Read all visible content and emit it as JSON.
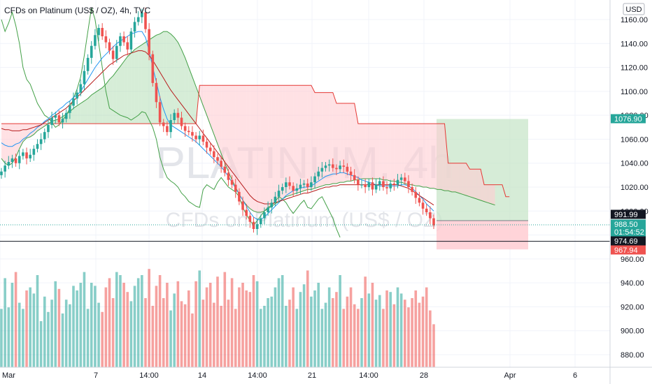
{
  "title": "CFDs on Platinum (US$ / OZ), 4h, TVC",
  "watermark": {
    "symbol": "PLATINUM, 4h",
    "description": "CFDs on Platinum (US$ / OZ)"
  },
  "currency": "USD",
  "colors": {
    "up": "#26a69a",
    "down": "#ef5350",
    "tenkan": "#2196f3",
    "kijun": "#b71c1c",
    "span_a": "#43a047",
    "span_b": "#e53935",
    "chikou": "#43a047",
    "long_target": "#c8e6c9",
    "long_stop": "#ffcdd2"
  },
  "axis": {
    "y_ticks": [
      "1160.00",
      "1140.00",
      "1120.00",
      "1100.00",
      "1080.00",
      "1060.00",
      "1040.00",
      "1020.00",
      "1000.00",
      "980.00",
      "960.00",
      "940.00",
      "920.00",
      "900.00",
      "880.00"
    ],
    "x_ticks": [
      "Mar",
      "7",
      "14:00",
      "14",
      "14:00",
      "21",
      "14:00",
      "28",
      "Apr",
      "6"
    ]
  },
  "price_tags": [
    {
      "label": "1076.90",
      "kind": "target",
      "value": 1076.9
    },
    {
      "label": "991.99",
      "kind": "entry",
      "value": 991.99
    },
    {
      "label": "988.50",
      "kind": "last",
      "value": 988.5
    },
    {
      "label": "01:54:52",
      "kind": "countdown",
      "value": 985.5
    },
    {
      "label": "974.69",
      "kind": "horizontal-line",
      "value": 974.69
    },
    {
      "label": "967.94",
      "kind": "stop",
      "value": 967.94
    }
  ],
  "chart_data": {
    "type": "candlestick",
    "title": "CFDs on Platinum (US$ / OZ), 4h, TVC",
    "ylabel": "USD",
    "ylim": [
      868,
      1172
    ],
    "x_range_labels": [
      "Mar",
      "Apr 6"
    ],
    "series": [
      {
        "name": "close",
        "values": [
          1033,
          1038,
          1041,
          1044,
          1040,
          1046,
          1049,
          1044,
          1047,
          1052,
          1056,
          1060,
          1066,
          1072,
          1078,
          1080,
          1074,
          1077,
          1082,
          1088,
          1094,
          1099,
          1106,
          1117,
          1128,
          1138,
          1147,
          1153,
          1146,
          1141,
          1134,
          1127,
          1138,
          1146,
          1141,
          1135,
          1150,
          1158,
          1162,
          1166,
          1152,
          1131,
          1107,
          1091,
          1074,
          1071,
          1066,
          1076,
          1082,
          1078,
          1071,
          1067,
          1066,
          1063,
          1060,
          1063,
          1058,
          1053,
          1050,
          1045,
          1042,
          1037,
          1032,
          1026,
          1022,
          1016,
          1008,
          1001,
          996,
          991,
          985,
          989,
          994,
          999,
          1003,
          1007,
          1012,
          1017,
          1020,
          1024,
          1021,
          1017,
          1019,
          1022,
          1023,
          1020,
          1024,
          1029,
          1033,
          1036,
          1038,
          1039,
          1036,
          1035,
          1038,
          1037,
          1033,
          1030,
          1026,
          1022,
          1022,
          1020,
          1024,
          1018,
          1022,
          1025,
          1020,
          1019,
          1023,
          1022,
          1026,
          1028,
          1025,
          1020,
          1016,
          1011,
          1007,
          1002,
          999,
          994,
          988
        ]
      },
      {
        "name": "volume",
        "values": [
          38,
          58,
          39,
          55,
          62,
          42,
          38,
          50,
          52,
          48,
          60,
          30,
          46,
          36,
          44,
          56,
          51,
          35,
          44,
          41,
          53,
          50,
          55,
          62,
          38,
          55,
          53,
          42,
          36,
          52,
          58,
          45,
          62,
          60,
          55,
          49,
          43,
          53,
          58,
          60,
          45,
          64,
          40,
          53,
          60,
          45,
          55,
          37,
          48,
          56,
          43,
          41,
          50,
          35,
          56,
          63,
          44,
          52,
          55,
          42,
          59,
          40,
          62,
          44,
          58,
          38,
          52,
          55,
          50,
          49,
          60,
          56,
          38,
          40,
          45,
          46,
          52,
          58,
          60,
          40,
          44,
          52,
          38,
          49,
          54,
          63,
          46,
          50,
          55,
          38,
          42,
          52,
          45,
          49,
          60,
          38,
          46,
          52,
          41,
          38,
          45,
          59,
          48,
          55,
          44,
          47,
          38,
          50,
          49,
          41,
          52,
          48,
          44,
          39,
          45,
          50,
          42,
          46,
          52,
          37,
          28
        ]
      },
      {
        "name": "tenkan",
        "values": [
          1057,
          1055,
          1054,
          1054,
          1056,
          1057,
          1060,
          1062,
          1065,
          1067,
          1070,
          1072,
          1075,
          1077,
          1080,
          1082,
          1085,
          1087,
          1090,
          1092,
          1095,
          1097,
          1100,
          1105,
          1110,
          1115,
          1120,
          1124,
          1128,
          1131,
          1134,
          1137,
          1140,
          1142,
          1144,
          1146,
          1148,
          1149,
          1150,
          1150,
          1145,
          1134,
          1120,
          1108,
          1095,
          1085,
          1077,
          1072,
          1070,
          1068,
          1066,
          1064,
          1062,
          1060,
          1058,
          1055,
          1052,
          1049,
          1046,
          1043,
          1040,
          1037,
          1033,
          1029,
          1024,
          1019,
          1014,
          1009,
          1004,
          999,
          995,
          993,
          993,
          995,
          998,
          1001,
          1004,
          1007,
          1010,
          1013,
          1015,
          1017,
          1018,
          1019,
          1020,
          1020,
          1021,
          1023,
          1025,
          1027,
          1029,
          1030,
          1031,
          1031,
          1032,
          1032,
          1031,
          1030,
          1029,
          1028,
          1026,
          1025,
          1024,
          1023,
          1022,
          1021,
          1021,
          1021,
          1021,
          1021,
          1021,
          1022,
          1022,
          1021,
          1019,
          1016,
          1013,
          1010,
          1006,
          1003,
          1000
        ]
      },
      {
        "name": "kijun",
        "values": [
          1069,
          1068,
          1068,
          1067,
          1067,
          1067,
          1068,
          1068,
          1069,
          1070,
          1071,
          1072,
          1074,
          1076,
          1078,
          1080,
          1082,
          1084,
          1086,
          1089,
          1092,
          1095,
          1098,
          1101,
          1104,
          1107,
          1110,
          1113,
          1116,
          1119,
          1122,
          1124,
          1126,
          1128,
          1130,
          1131,
          1132,
          1133,
          1134,
          1134,
          1133,
          1130,
          1126,
          1121,
          1116,
          1111,
          1106,
          1101,
          1097,
          1093,
          1089,
          1085,
          1081,
          1077,
          1073,
          1069,
          1065,
          1061,
          1057,
          1053,
          1049,
          1045,
          1041,
          1037,
          1033,
          1029,
          1025,
          1021,
          1017,
          1013,
          1010,
          1008,
          1007,
          1006,
          1006,
          1006,
          1007,
          1008,
          1009,
          1010,
          1011,
          1012,
          1013,
          1014,
          1015,
          1015,
          1016,
          1017,
          1018,
          1019,
          1020,
          1020,
          1021,
          1021,
          1022,
          1022,
          1022,
          1022,
          1022,
          1022,
          1022,
          1022,
          1022,
          1022,
          1022,
          1022,
          1022,
          1022,
          1022,
          1022,
          1022,
          1021,
          1020,
          1019,
          1017,
          1015,
          1013,
          1011,
          1009,
          1007,
          1005
        ]
      },
      {
        "name": "span_a",
        "values": [
          1044,
          1040,
          1038,
          1040,
          1045,
          1052,
          1058,
          1061,
          1062,
          1064,
          1067,
          1069,
          1071,
          1073,
          1075,
          1076,
          1077,
          1079,
          1081,
          1083,
          1086,
          1088,
          1090,
          1092,
          1094,
          1097,
          1099,
          1101,
          1103,
          1106,
          1110,
          1113,
          1117,
          1121,
          1125,
          1129,
          1132,
          1135,
          1137,
          1139,
          1141,
          1143,
          1145,
          1147,
          1148,
          1150,
          1150,
          1148,
          1145,
          1141,
          1135,
          1128,
          1120,
          1112,
          1104,
          1096,
          1088,
          1080,
          1072,
          1064,
          1056,
          1048,
          1040,
          1033,
          1026,
          1020,
          1014,
          1009,
          1005,
          1002,
          1000,
          999,
          999,
          1000,
          1002,
          1004,
          1006,
          1008,
          1010,
          1012,
          1013,
          1014,
          1015,
          1016,
          1017,
          1018,
          1018,
          1019,
          1020,
          1021,
          1022,
          1022,
          1023,
          1023,
          1024,
          1024,
          1025,
          1025,
          1026,
          1026,
          1027,
          1027,
          1027,
          1027,
          1027,
          1027,
          1026,
          1026,
          1025,
          1025,
          1024,
          1024,
          1023,
          1022,
          1022,
          1021,
          1021,
          1020,
          1020,
          1019,
          1019,
          1018,
          1018,
          1017,
          1017,
          1016,
          1016,
          1015,
          1014,
          1013,
          1012,
          1011,
          1010,
          1009,
          1008,
          1007,
          1006,
          1005
        ]
      },
      {
        "name": "span_b",
        "values": [
          1073,
          1073,
          1073,
          1073,
          1073,
          1073,
          1073,
          1073,
          1073,
          1073,
          1073,
          1073,
          1073,
          1073,
          1073,
          1073,
          1073,
          1073,
          1073,
          1073,
          1073,
          1073,
          1073,
          1073,
          1073,
          1073,
          1073,
          1073,
          1073,
          1073,
          1073,
          1073,
          1073,
          1073,
          1073,
          1073,
          1073,
          1073,
          1073,
          1073,
          1073,
          1073,
          1073,
          1073,
          1073,
          1073,
          1073,
          1073,
          1073,
          1073,
          1073,
          1073,
          1073,
          1073,
          1073,
          1105,
          1105,
          1105,
          1105,
          1105,
          1105,
          1105,
          1105,
          1105,
          1105,
          1105,
          1105,
          1105,
          1105,
          1105,
          1105,
          1105,
          1105,
          1105,
          1105,
          1105,
          1105,
          1105,
          1105,
          1105,
          1105,
          1105,
          1105,
          1105,
          1105,
          1105,
          1105,
          1099,
          1099,
          1099,
          1099,
          1099,
          1099,
          1090,
          1090,
          1090,
          1090,
          1090,
          1090,
          1073,
          1073,
          1073,
          1073,
          1073,
          1073,
          1073,
          1073,
          1073,
          1073,
          1073,
          1073,
          1073,
          1073,
          1073,
          1073,
          1073,
          1073,
          1073,
          1073,
          1073,
          1073,
          1073,
          1073,
          1073,
          1040,
          1040,
          1040,
          1040,
          1040,
          1040,
          1035,
          1035,
          1035,
          1035,
          1022,
          1022,
          1022,
          1022,
          1022,
          1022,
          1012,
          1012
        ]
      },
      {
        "name": "chikou",
        "values": [
          1160,
          1150,
          1157,
          1166,
          1155,
          1140,
          1120,
          1110,
          1106,
          1098,
          1090,
          1085,
          1080,
          1078,
          1074,
          1070,
          1072,
          1076,
          1080,
          1086,
          1094,
          1102,
          1112,
          1130,
          1150,
          1170,
          1160,
          1140,
          1120,
          1100,
          1086,
          1084,
          1082,
          1080,
          1079,
          1078,
          1076,
          1078,
          1080,
          1083,
          1082,
          1076,
          1070,
          1060,
          1045,
          1035,
          1028,
          1025,
          1023,
          1020,
          1015,
          1012,
          1008,
          1006,
          1004,
          1003,
          1018,
          1022,
          1020,
          1018,
          1024,
          1028,
          1024,
          1020,
          1018,
          1016,
          1012,
          1003,
          997,
          992,
          988,
          992,
          996,
          1000,
          1003,
          1005,
          1008,
          1012,
          1010,
          1007,
          1002,
          998,
          1002,
          1006,
          1009,
          1003,
          1002,
          1006,
          1010,
          1012,
          1006,
          1000,
          994,
          985,
          978
        ]
      }
    ],
    "trade": {
      "type": "long position",
      "target": 1076.9,
      "entry": 991.99,
      "stop": 967.94
    },
    "horizontal_line": 974.69,
    "grid": true
  }
}
